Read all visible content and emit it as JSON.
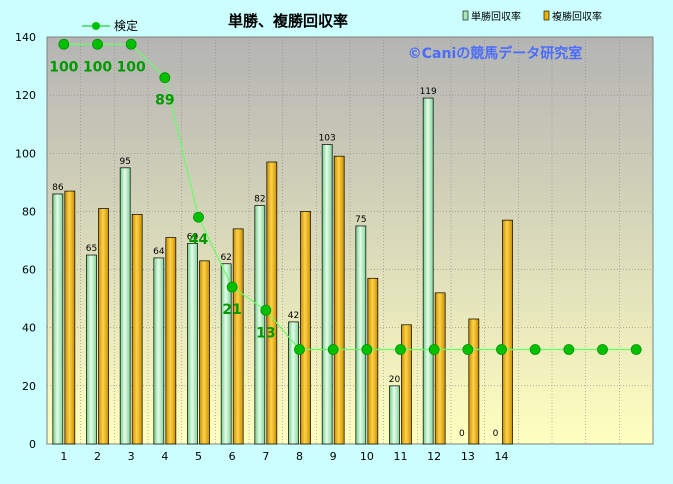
{
  "chart_data": {
    "type": "bar",
    "title": "単勝、複勝回収率",
    "watermark": "©Caniの競馬データ研究室",
    "categories": [
      "1",
      "2",
      "3",
      "4",
      "5",
      "6",
      "7",
      "8",
      "9",
      "10",
      "11",
      "12",
      "13",
      "14"
    ],
    "line_points": 18,
    "ylim": [
      0,
      140
    ],
    "yticks": [
      "0",
      "20",
      "40",
      "60",
      "80",
      "100",
      "120",
      "140"
    ],
    "grid": true,
    "legend_position": "top",
    "series": [
      {
        "name": "単勝回収率",
        "color": "#a8e6b8",
        "values": [
          86,
          65,
          95,
          64,
          69,
          62,
          82,
          42,
          103,
          75,
          20,
          119,
          0,
          0
        ]
      },
      {
        "name": "複勝回収率",
        "color": "#e8b000",
        "values": [
          87,
          81,
          79,
          71,
          63,
          74,
          97,
          80,
          99,
          57,
          41,
          52,
          43,
          77
        ]
      }
    ],
    "line_series": {
      "name": "検定",
      "color": "#00c000",
      "values": [
        137.5,
        137.5,
        137.5,
        126,
        78,
        54,
        46,
        32.5,
        32.5,
        32.5,
        32.5,
        32.5,
        32.5,
        32.5,
        32.5,
        32.5,
        32.5,
        32.5
      ],
      "labels": [
        "100",
        "100",
        "100",
        "89",
        "44",
        "21",
        "13"
      ]
    },
    "colors": {
      "page_background": "#ccffff",
      "plot_top": "#b4b4b4",
      "plot_bottom": "#ffffc0"
    }
  }
}
